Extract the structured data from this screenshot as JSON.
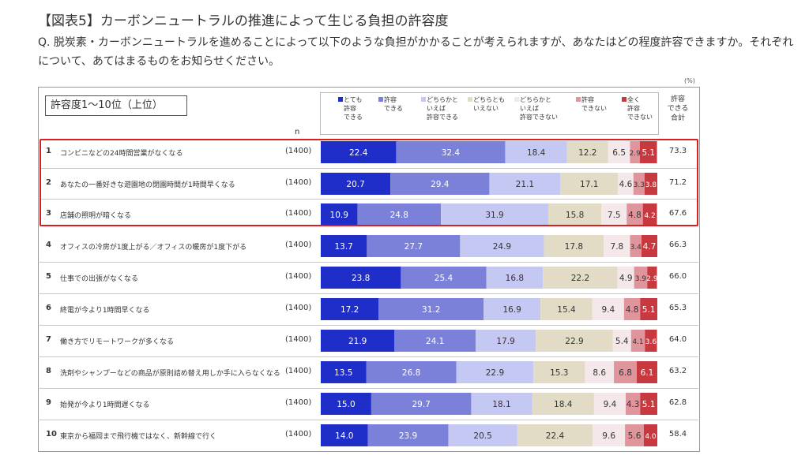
{
  "header": {
    "title": "【図表5】カーボンニュートラルの推進によって生じる負担の許容度",
    "question": "Q. 脱炭素・カーボンニュートラルを進めることによって以下のような負担がかかることが考えられますが、あなたはどの程度許容できますか。それぞれについて、あてはまるものをお知らせください。"
  },
  "panel": {
    "subheading": "許容度1〜10位（上位）",
    "n_label": "n",
    "unit": "(%)",
    "total_header": "許容\nできる\n合計"
  },
  "legend": [
    {
      "label": "とても\n許容\nできる",
      "color": "#1f2ec8"
    },
    {
      "label": "許容\nできる",
      "color": "#7b80d9"
    },
    {
      "label": "どちらかと\nいえば\n許容できる",
      "color": "#c4c8f3"
    },
    {
      "label": "どちらとも\nいえない",
      "color": "#e2dcc6"
    },
    {
      "label": "どちらかと\nいえば\n許容できない",
      "color": "#f5e8ea"
    },
    {
      "label": "許容\nできない",
      "color": "#e0949b"
    },
    {
      "label": "全く\n許容\nできない",
      "color": "#c8393f"
    }
  ],
  "chart_data": {
    "type": "bar",
    "orientation": "horizontal",
    "stacked": true,
    "unit": "%",
    "xlim": [
      0,
      100
    ],
    "series_names": [
      "とても許容できる",
      "許容できる",
      "どちらかといえば許容できる",
      "どちらともいえない",
      "どちらかといえば許容できない",
      "許容できない",
      "全く許容できない"
    ],
    "rows": [
      {
        "rank": "1",
        "label": "コンビニなどの24時間営業がなくなる",
        "n": "(1400)",
        "values": [
          22.4,
          32.4,
          18.4,
          12.2,
          6.5,
          2.9,
          5.1
        ],
        "total": "73.3",
        "highlighted": true
      },
      {
        "rank": "2",
        "label": "あなたの一番好きな遊園地の閉園時間が1時間早くなる",
        "n": "(1400)",
        "values": [
          20.7,
          29.4,
          21.1,
          17.1,
          4.6,
          3.3,
          3.8
        ],
        "total": "71.2",
        "highlighted": true
      },
      {
        "rank": "3",
        "label": "店舗の照明が暗くなる",
        "n": "(1400)",
        "values": [
          10.9,
          24.8,
          31.9,
          15.8,
          7.5,
          4.8,
          4.2
        ],
        "total": "67.6",
        "highlighted": true
      },
      {
        "rank": "4",
        "label": "オフィスの冷房が1度上がる／オフィスの暖房が1度下がる",
        "n": "(1400)",
        "values": [
          13.7,
          27.7,
          24.9,
          17.8,
          7.8,
          3.4,
          4.7
        ],
        "total": "66.3",
        "highlighted": false
      },
      {
        "rank": "5",
        "label": "仕事での出張がなくなる",
        "n": "(1400)",
        "values": [
          23.8,
          25.4,
          16.8,
          22.2,
          4.9,
          3.9,
          2.9
        ],
        "total": "66.0",
        "highlighted": false
      },
      {
        "rank": "6",
        "label": "終電が今より1時間早くなる",
        "n": "(1400)",
        "values": [
          17.2,
          31.2,
          16.9,
          15.4,
          9.4,
          4.8,
          5.1
        ],
        "total": "65.3",
        "highlighted": false
      },
      {
        "rank": "7",
        "label": "働き方でリモートワークが多くなる",
        "n": "(1400)",
        "values": [
          21.9,
          24.1,
          17.9,
          22.9,
          5.4,
          4.1,
          3.6
        ],
        "total": "64.0",
        "highlighted": false
      },
      {
        "rank": "8",
        "label": "洗剤やシャンプーなどの商品が原則詰め替え用しか手に入らなくなる",
        "n": "(1400)",
        "values": [
          13.5,
          26.8,
          22.9,
          15.3,
          8.6,
          6.8,
          6.1
        ],
        "total": "63.2",
        "highlighted": false
      },
      {
        "rank": "9",
        "label": "始発が今より1時間遅くなる",
        "n": "(1400)",
        "values": [
          15.0,
          29.7,
          18.1,
          18.4,
          9.4,
          4.3,
          5.1
        ],
        "total": "62.8",
        "highlighted": false
      },
      {
        "rank": "10",
        "label": "東京から福岡まで飛行機ではなく、新幹線で行く",
        "n": "(1400)",
        "values": [
          14.0,
          23.9,
          20.5,
          22.4,
          9.6,
          5.6,
          4.0
        ],
        "total": "58.4",
        "highlighted": false
      }
    ]
  }
}
